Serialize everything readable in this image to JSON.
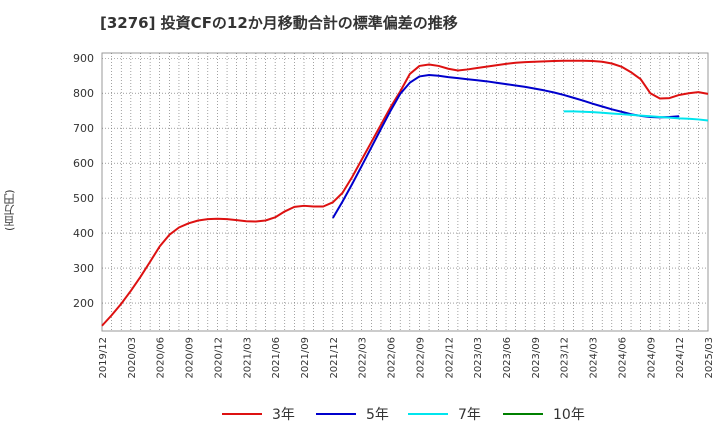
{
  "chart_data": {
    "type": "line",
    "title": "[3276]  投資CFの12か月移動合計の標準偏差の推移",
    "ylabel": "(百万円)",
    "xlabel": "",
    "ylim": [
      120,
      915
    ],
    "yticks": [
      200,
      300,
      400,
      500,
      600,
      700,
      800,
      900
    ],
    "xticks": [
      "2019/12",
      "2020/03",
      "2020/06",
      "2020/09",
      "2020/12",
      "2021/03",
      "2021/06",
      "2021/09",
      "2021/12",
      "2022/03",
      "2022/06",
      "2022/09",
      "2022/12",
      "2023/03",
      "2023/06",
      "2023/09",
      "2023/12",
      "2024/03",
      "2024/06",
      "2024/09",
      "2024/12",
      "2025/03"
    ],
    "grid": true,
    "legend_position": "bottom",
    "x_start": "2019/12",
    "series": [
      {
        "name": "3年",
        "color": "#dd1111",
        "start_index": 0,
        "values": [
          135,
          165,
          198,
          235,
          275,
          318,
          362,
          395,
          416,
          428,
          436,
          440,
          441,
          440,
          437,
          434,
          433,
          436,
          445,
          462,
          475,
          478,
          476,
          476,
          488,
          515,
          560,
          610,
          660,
          710,
          760,
          805,
          855,
          878,
          882,
          878,
          870,
          865,
          868,
          872,
          876,
          880,
          884,
          887,
          889,
          890,
          891,
          892,
          893,
          893,
          893,
          892,
          890,
          885,
          876,
          860,
          840,
          800,
          785,
          786,
          795,
          800,
          803,
          798
        ]
      },
      {
        "name": "5年",
        "color": "#0000cc",
        "start_index": 24,
        "values": [
          443,
          490,
          540,
          592,
          645,
          698,
          750,
          798,
          830,
          848,
          852,
          850,
          846,
          843,
          840,
          837,
          834,
          830,
          826,
          822,
          818,
          813,
          808,
          802,
          795,
          787,
          779,
          770,
          762,
          754,
          747,
          740,
          735,
          732,
          731,
          732,
          734
        ]
      },
      {
        "name": "7年",
        "color": "#00e5ee",
        "start_index": 48,
        "values": [
          748,
          748,
          747,
          746,
          744,
          742,
          740,
          738,
          736,
          734,
          732,
          730,
          728,
          727,
          725,
          722
        ]
      },
      {
        "name": "10年",
        "color": "#008000",
        "start_index": 0,
        "values": []
      }
    ]
  }
}
